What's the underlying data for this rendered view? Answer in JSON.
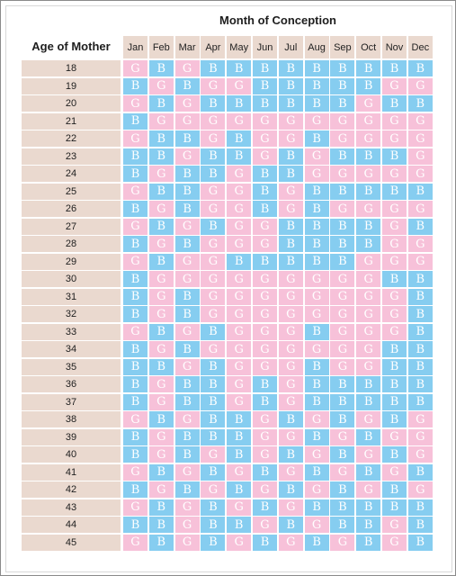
{
  "title": "Month of Conception",
  "age_header": "Age of Mother",
  "months": [
    "Jan",
    "Feb",
    "Mar",
    "Apr",
    "May",
    "Jun",
    "Jul",
    "Aug",
    "Sep",
    "Oct",
    "Nov",
    "Dec"
  ],
  "colors": {
    "girl": "#f7c1d9",
    "boy": "#86cdf0",
    "header_bg": "#ead9cf"
  },
  "rows": [
    {
      "age": "18",
      "cells": [
        "G",
        "B",
        "G",
        "B",
        "B",
        "B",
        "B",
        "B",
        "B",
        "B",
        "B",
        "B"
      ]
    },
    {
      "age": "19",
      "cells": [
        "B",
        "G",
        "B",
        "G",
        "G",
        "B",
        "B",
        "B",
        "B",
        "B",
        "G",
        "G"
      ]
    },
    {
      "age": "20",
      "cells": [
        "G",
        "B",
        "G",
        "B",
        "B",
        "B",
        "B",
        "B",
        "B",
        "G",
        "B",
        "B"
      ]
    },
    {
      "age": "21",
      "cells": [
        "B",
        "G",
        "G",
        "G",
        "G",
        "G",
        "G",
        "G",
        "G",
        "G",
        "G",
        "G"
      ]
    },
    {
      "age": "22",
      "cells": [
        "G",
        "B",
        "B",
        "G",
        "B",
        "G",
        "G",
        "B",
        "G",
        "G",
        "G",
        "G"
      ]
    },
    {
      "age": "23",
      "cells": [
        "B",
        "B",
        "G",
        "B",
        "B",
        "G",
        "B",
        "G",
        "B",
        "B",
        "B",
        "G"
      ]
    },
    {
      "age": "24",
      "cells": [
        "B",
        "G",
        "B",
        "B",
        "G",
        "B",
        "B",
        "G",
        "G",
        "G",
        "G",
        "G"
      ]
    },
    {
      "age": "25",
      "cells": [
        "G",
        "B",
        "B",
        "G",
        "G",
        "B",
        "G",
        "B",
        "B",
        "B",
        "B",
        "B"
      ]
    },
    {
      "age": "26",
      "cells": [
        "B",
        "G",
        "B",
        "G",
        "G",
        "B",
        "G",
        "B",
        "G",
        "G",
        "G",
        "G"
      ]
    },
    {
      "age": "27",
      "cells": [
        "G",
        "B",
        "G",
        "B",
        "G",
        "G",
        "B",
        "B",
        "B",
        "B",
        "G",
        "B"
      ]
    },
    {
      "age": "28",
      "cells": [
        "B",
        "G",
        "B",
        "G",
        "G",
        "G",
        "B",
        "B",
        "B",
        "B",
        "G",
        "G"
      ]
    },
    {
      "age": "29",
      "cells": [
        "G",
        "B",
        "G",
        "G",
        "B",
        "B",
        "B",
        "B",
        "B",
        "G",
        "G",
        "G"
      ]
    },
    {
      "age": "30",
      "cells": [
        "B",
        "G",
        "G",
        "G",
        "G",
        "G",
        "G",
        "G",
        "G",
        "G",
        "B",
        "B"
      ]
    },
    {
      "age": "31",
      "cells": [
        "B",
        "G",
        "B",
        "G",
        "G",
        "G",
        "G",
        "G",
        "G",
        "G",
        "G",
        "B"
      ]
    },
    {
      "age": "32",
      "cells": [
        "B",
        "G",
        "B",
        "G",
        "G",
        "G",
        "G",
        "G",
        "G",
        "G",
        "G",
        "B"
      ]
    },
    {
      "age": "33",
      "cells": [
        "G",
        "B",
        "G",
        "B",
        "G",
        "G",
        "G",
        "B",
        "G",
        "G",
        "G",
        "B"
      ]
    },
    {
      "age": "34",
      "cells": [
        "B",
        "G",
        "B",
        "G",
        "G",
        "G",
        "G",
        "G",
        "G",
        "G",
        "B",
        "B"
      ]
    },
    {
      "age": "35",
      "cells": [
        "B",
        "B",
        "G",
        "B",
        "G",
        "G",
        "G",
        "B",
        "G",
        "G",
        "B",
        "B"
      ]
    },
    {
      "age": "36",
      "cells": [
        "B",
        "G",
        "B",
        "B",
        "G",
        "B",
        "G",
        "B",
        "B",
        "B",
        "B",
        "B"
      ]
    },
    {
      "age": "37",
      "cells": [
        "B",
        "G",
        "B",
        "B",
        "G",
        "B",
        "G",
        "B",
        "B",
        "B",
        "B",
        "B"
      ]
    },
    {
      "age": "38",
      "cells": [
        "G",
        "B",
        "G",
        "B",
        "B",
        "G",
        "B",
        "G",
        "B",
        "G",
        "B",
        "G"
      ]
    },
    {
      "age": "39",
      "cells": [
        "B",
        "G",
        "B",
        "B",
        "B",
        "G",
        "G",
        "B",
        "G",
        "B",
        "G",
        "G"
      ]
    },
    {
      "age": "40",
      "cells": [
        "B",
        "G",
        "B",
        "G",
        "B",
        "G",
        "B",
        "G",
        "B",
        "G",
        "B",
        "G"
      ]
    },
    {
      "age": "41",
      "cells": [
        "G",
        "B",
        "G",
        "B",
        "G",
        "B",
        "G",
        "B",
        "G",
        "B",
        "G",
        "B"
      ]
    },
    {
      "age": "42",
      "cells": [
        "B",
        "G",
        "B",
        "G",
        "B",
        "G",
        "B",
        "G",
        "B",
        "G",
        "B",
        "G"
      ]
    },
    {
      "age": "43",
      "cells": [
        "G",
        "B",
        "G",
        "B",
        "G",
        "B",
        "G",
        "B",
        "B",
        "B",
        "B",
        "B"
      ]
    },
    {
      "age": "44",
      "cells": [
        "B",
        "B",
        "G",
        "B",
        "B",
        "G",
        "B",
        "G",
        "B",
        "B",
        "G",
        "B"
      ]
    },
    {
      "age": "45",
      "cells": [
        "G",
        "B",
        "G",
        "B",
        "G",
        "B",
        "G",
        "B",
        "G",
        "B",
        "G",
        "B"
      ]
    }
  ]
}
